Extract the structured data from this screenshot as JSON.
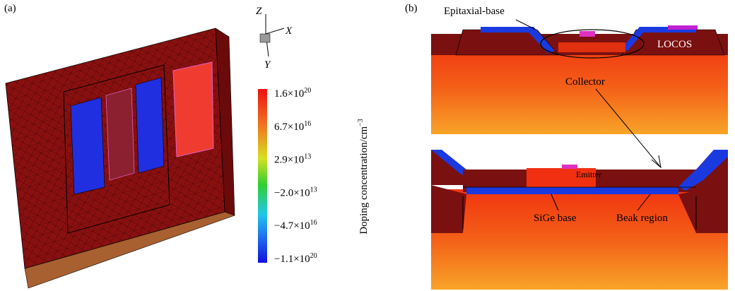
{
  "panel_a": {
    "label": "(a)",
    "axes": {
      "z": "Z",
      "x": "X",
      "y": "Y"
    },
    "colorbar": {
      "title": "Doping concentration/cm",
      "title_exp": "−3",
      "ticks": [
        {
          "base": "1.6×10",
          "exp": "20"
        },
        {
          "base": "6.7×10",
          "exp": "16"
        },
        {
          "base": "2.9×10",
          "exp": "13"
        },
        {
          "base": "−2.0×10",
          "exp": "13"
        },
        {
          "base": "−4.7×10",
          "exp": "16"
        },
        {
          "base": "−1.1×10",
          "exp": "20"
        }
      ]
    }
  },
  "panel_b": {
    "label": "(b)",
    "epitaxial_base": "Epitaxial-base",
    "locos": "LOCOS",
    "collector": "Collector",
    "emitter": "Emitter",
    "sige_base": "SiGe base",
    "beak_region": "Beak region"
  }
}
